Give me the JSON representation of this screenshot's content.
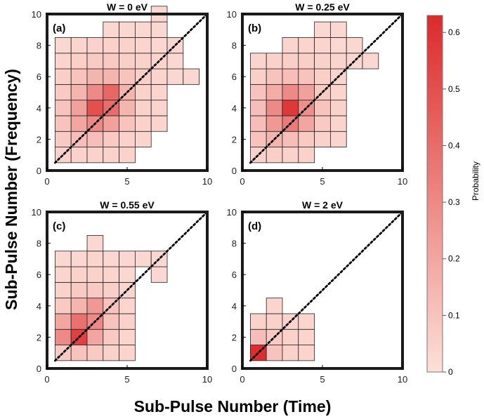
{
  "figure": {
    "xlabel": "Sub-Pulse Number (Time)",
    "ylabel": "Sub-Pulse Number (Frequency)"
  },
  "colorbar": {
    "label": "Probability",
    "ticks": [
      "0",
      "0.1",
      "0.2",
      "0.3",
      "0.4",
      "0.5",
      "0.6"
    ],
    "colors": {
      "low": "#fde0d9",
      "high": "#dc2a2a"
    }
  },
  "chart_data": [
    {
      "type": "heatmap",
      "panel": "(a)",
      "title": "W = 0 eV",
      "xlim": [
        0,
        10
      ],
      "ylim": [
        0,
        10
      ],
      "xticks": [
        0,
        5,
        10
      ],
      "yticks": [
        0,
        2,
        4,
        6,
        8,
        10
      ],
      "diagonal": "dotted",
      "cells": [
        [
          1,
          1,
          0.05
        ],
        [
          2,
          1,
          0.05
        ],
        [
          3,
          1,
          0.05
        ],
        [
          4,
          1,
          0.05
        ],
        [
          5,
          1,
          0.05
        ],
        [
          1,
          2,
          0.08
        ],
        [
          2,
          2,
          0.12
        ],
        [
          3,
          2,
          0.12
        ],
        [
          4,
          2,
          0.08
        ],
        [
          5,
          2,
          0.05
        ],
        [
          6,
          2,
          0.04
        ],
        [
          1,
          3,
          0.1
        ],
        [
          2,
          3,
          0.2
        ],
        [
          3,
          3,
          0.3
        ],
        [
          4,
          3,
          0.22
        ],
        [
          5,
          3,
          0.1
        ],
        [
          6,
          3,
          0.05
        ],
        [
          7,
          3,
          0.04
        ],
        [
          1,
          4,
          0.1
        ],
        [
          2,
          4,
          0.22
        ],
        [
          3,
          4,
          0.5
        ],
        [
          4,
          4,
          0.4
        ],
        [
          5,
          4,
          0.15
        ],
        [
          6,
          4,
          0.05
        ],
        [
          7,
          4,
          0.04
        ],
        [
          1,
          5,
          0.08
        ],
        [
          2,
          5,
          0.15
        ],
        [
          3,
          5,
          0.3
        ],
        [
          4,
          5,
          0.42
        ],
        [
          5,
          5,
          0.15
        ],
        [
          6,
          5,
          0.05
        ],
        [
          7,
          5,
          0.04
        ],
        [
          1,
          6,
          0.06
        ],
        [
          2,
          6,
          0.1
        ],
        [
          3,
          6,
          0.15
        ],
        [
          4,
          6,
          0.15
        ],
        [
          5,
          6,
          0.1
        ],
        [
          6,
          6,
          0.06
        ],
        [
          7,
          6,
          0.04
        ],
        [
          8,
          6,
          0.03
        ],
        [
          9,
          6,
          0.03
        ],
        [
          1,
          7,
          0.04
        ],
        [
          2,
          7,
          0.06
        ],
        [
          3,
          7,
          0.08
        ],
        [
          4,
          7,
          0.08
        ],
        [
          5,
          7,
          0.06
        ],
        [
          6,
          7,
          0.05
        ],
        [
          7,
          7,
          0.04
        ],
        [
          8,
          7,
          0.03
        ],
        [
          1,
          8,
          0.03
        ],
        [
          2,
          8,
          0.04
        ],
        [
          3,
          8,
          0.05
        ],
        [
          4,
          8,
          0.05
        ],
        [
          5,
          8,
          0.05
        ],
        [
          6,
          8,
          0.04
        ],
        [
          7,
          8,
          0.03
        ],
        [
          8,
          8,
          0.03
        ],
        [
          4,
          9,
          0.03
        ],
        [
          5,
          9,
          0.03
        ],
        [
          6,
          9,
          0.03
        ],
        [
          7,
          9,
          0.03
        ],
        [
          7,
          10,
          0.03
        ]
      ]
    },
    {
      "type": "heatmap",
      "panel": "(b)",
      "title": "W = 0.25 eV",
      "xlim": [
        0,
        10
      ],
      "ylim": [
        0,
        10
      ],
      "xticks": [
        0,
        5,
        10
      ],
      "yticks": [
        0,
        2,
        4,
        6,
        8,
        10
      ],
      "diagonal": "dotted",
      "cells": [
        [
          1,
          1,
          0.05
        ],
        [
          2,
          1,
          0.06
        ],
        [
          3,
          1,
          0.05
        ],
        [
          4,
          1,
          0.05
        ],
        [
          1,
          2,
          0.1
        ],
        [
          2,
          2,
          0.15
        ],
        [
          3,
          2,
          0.12
        ],
        [
          4,
          2,
          0.08
        ],
        [
          5,
          2,
          0.05
        ],
        [
          6,
          2,
          0.04
        ],
        [
          1,
          3,
          0.12
        ],
        [
          2,
          3,
          0.25
        ],
        [
          3,
          3,
          0.35
        ],
        [
          4,
          3,
          0.2
        ],
        [
          5,
          3,
          0.08
        ],
        [
          6,
          3,
          0.04
        ],
        [
          1,
          4,
          0.12
        ],
        [
          2,
          4,
          0.3
        ],
        [
          3,
          4,
          0.58
        ],
        [
          4,
          4,
          0.28
        ],
        [
          5,
          4,
          0.1
        ],
        [
          6,
          4,
          0.05
        ],
        [
          1,
          5,
          0.1
        ],
        [
          2,
          5,
          0.18
        ],
        [
          3,
          5,
          0.3
        ],
        [
          4,
          5,
          0.22
        ],
        [
          5,
          5,
          0.08
        ],
        [
          6,
          5,
          0.04
        ],
        [
          1,
          6,
          0.06
        ],
        [
          2,
          6,
          0.1
        ],
        [
          3,
          6,
          0.12
        ],
        [
          4,
          6,
          0.1
        ],
        [
          5,
          6,
          0.06
        ],
        [
          6,
          6,
          0.04
        ],
        [
          1,
          7,
          0.04
        ],
        [
          2,
          7,
          0.05
        ],
        [
          3,
          7,
          0.06
        ],
        [
          4,
          7,
          0.06
        ],
        [
          5,
          7,
          0.05
        ],
        [
          6,
          7,
          0.04
        ],
        [
          7,
          7,
          0.03
        ],
        [
          8,
          7,
          0.03
        ],
        [
          3,
          8,
          0.04
        ],
        [
          4,
          8,
          0.04
        ],
        [
          5,
          8,
          0.04
        ],
        [
          6,
          8,
          0.03
        ],
        [
          7,
          8,
          0.03
        ],
        [
          5,
          9,
          0.03
        ],
        [
          6,
          9,
          0.03
        ]
      ]
    },
    {
      "type": "heatmap",
      "panel": "(c)",
      "title": "W = 0.55 eV",
      "xlim": [
        0,
        10
      ],
      "ylim": [
        0,
        10
      ],
      "xticks": [
        0,
        5,
        10
      ],
      "yticks": [
        0,
        2,
        4,
        6,
        8,
        10
      ],
      "diagonal": "dotted",
      "cells": [
        [
          1,
          1,
          0.08
        ],
        [
          2,
          1,
          0.1
        ],
        [
          3,
          1,
          0.08
        ],
        [
          4,
          1,
          0.05
        ],
        [
          5,
          1,
          0.04
        ],
        [
          1,
          2,
          0.3
        ],
        [
          2,
          2,
          0.55
        ],
        [
          3,
          2,
          0.2
        ],
        [
          4,
          2,
          0.08
        ],
        [
          5,
          2,
          0.04
        ],
        [
          1,
          3,
          0.2
        ],
        [
          2,
          3,
          0.38
        ],
        [
          3,
          3,
          0.3
        ],
        [
          4,
          3,
          0.1
        ],
        [
          5,
          3,
          0.05
        ],
        [
          1,
          4,
          0.08
        ],
        [
          2,
          4,
          0.15
        ],
        [
          3,
          4,
          0.25
        ],
        [
          4,
          4,
          0.1
        ],
        [
          5,
          4,
          0.04
        ],
        [
          1,
          5,
          0.05
        ],
        [
          2,
          5,
          0.08
        ],
        [
          3,
          5,
          0.08
        ],
        [
          4,
          5,
          0.06
        ],
        [
          5,
          5,
          0.04
        ],
        [
          1,
          6,
          0.04
        ],
        [
          2,
          6,
          0.05
        ],
        [
          3,
          6,
          0.05
        ],
        [
          4,
          6,
          0.04
        ],
        [
          5,
          6,
          0.03
        ],
        [
          7,
          6,
          0.03
        ],
        [
          1,
          7,
          0.03
        ],
        [
          2,
          7,
          0.03
        ],
        [
          3,
          7,
          0.04
        ],
        [
          4,
          7,
          0.03
        ],
        [
          5,
          7,
          0.03
        ],
        [
          6,
          7,
          0.03
        ],
        [
          7,
          7,
          0.03
        ],
        [
          3,
          8,
          0.03
        ]
      ]
    },
    {
      "type": "heatmap",
      "panel": "(d)",
      "title": "W = 2 eV",
      "xlim": [
        0,
        10
      ],
      "ylim": [
        0,
        10
      ],
      "xticks": [
        0,
        5,
        10
      ],
      "yticks": [
        0,
        2,
        4,
        6,
        8,
        10
      ],
      "diagonal": "dotted",
      "cells": [
        [
          1,
          1,
          0.62
        ],
        [
          2,
          1,
          0.1
        ],
        [
          3,
          1,
          0.05
        ],
        [
          4,
          1,
          0.04
        ],
        [
          1,
          2,
          0.12
        ],
        [
          2,
          2,
          0.08
        ],
        [
          3,
          2,
          0.05
        ],
        [
          4,
          2,
          0.04
        ],
        [
          1,
          3,
          0.05
        ],
        [
          2,
          3,
          0.05
        ],
        [
          3,
          3,
          0.04
        ],
        [
          4,
          3,
          0.04
        ],
        [
          2,
          4,
          0.04
        ]
      ]
    }
  ]
}
